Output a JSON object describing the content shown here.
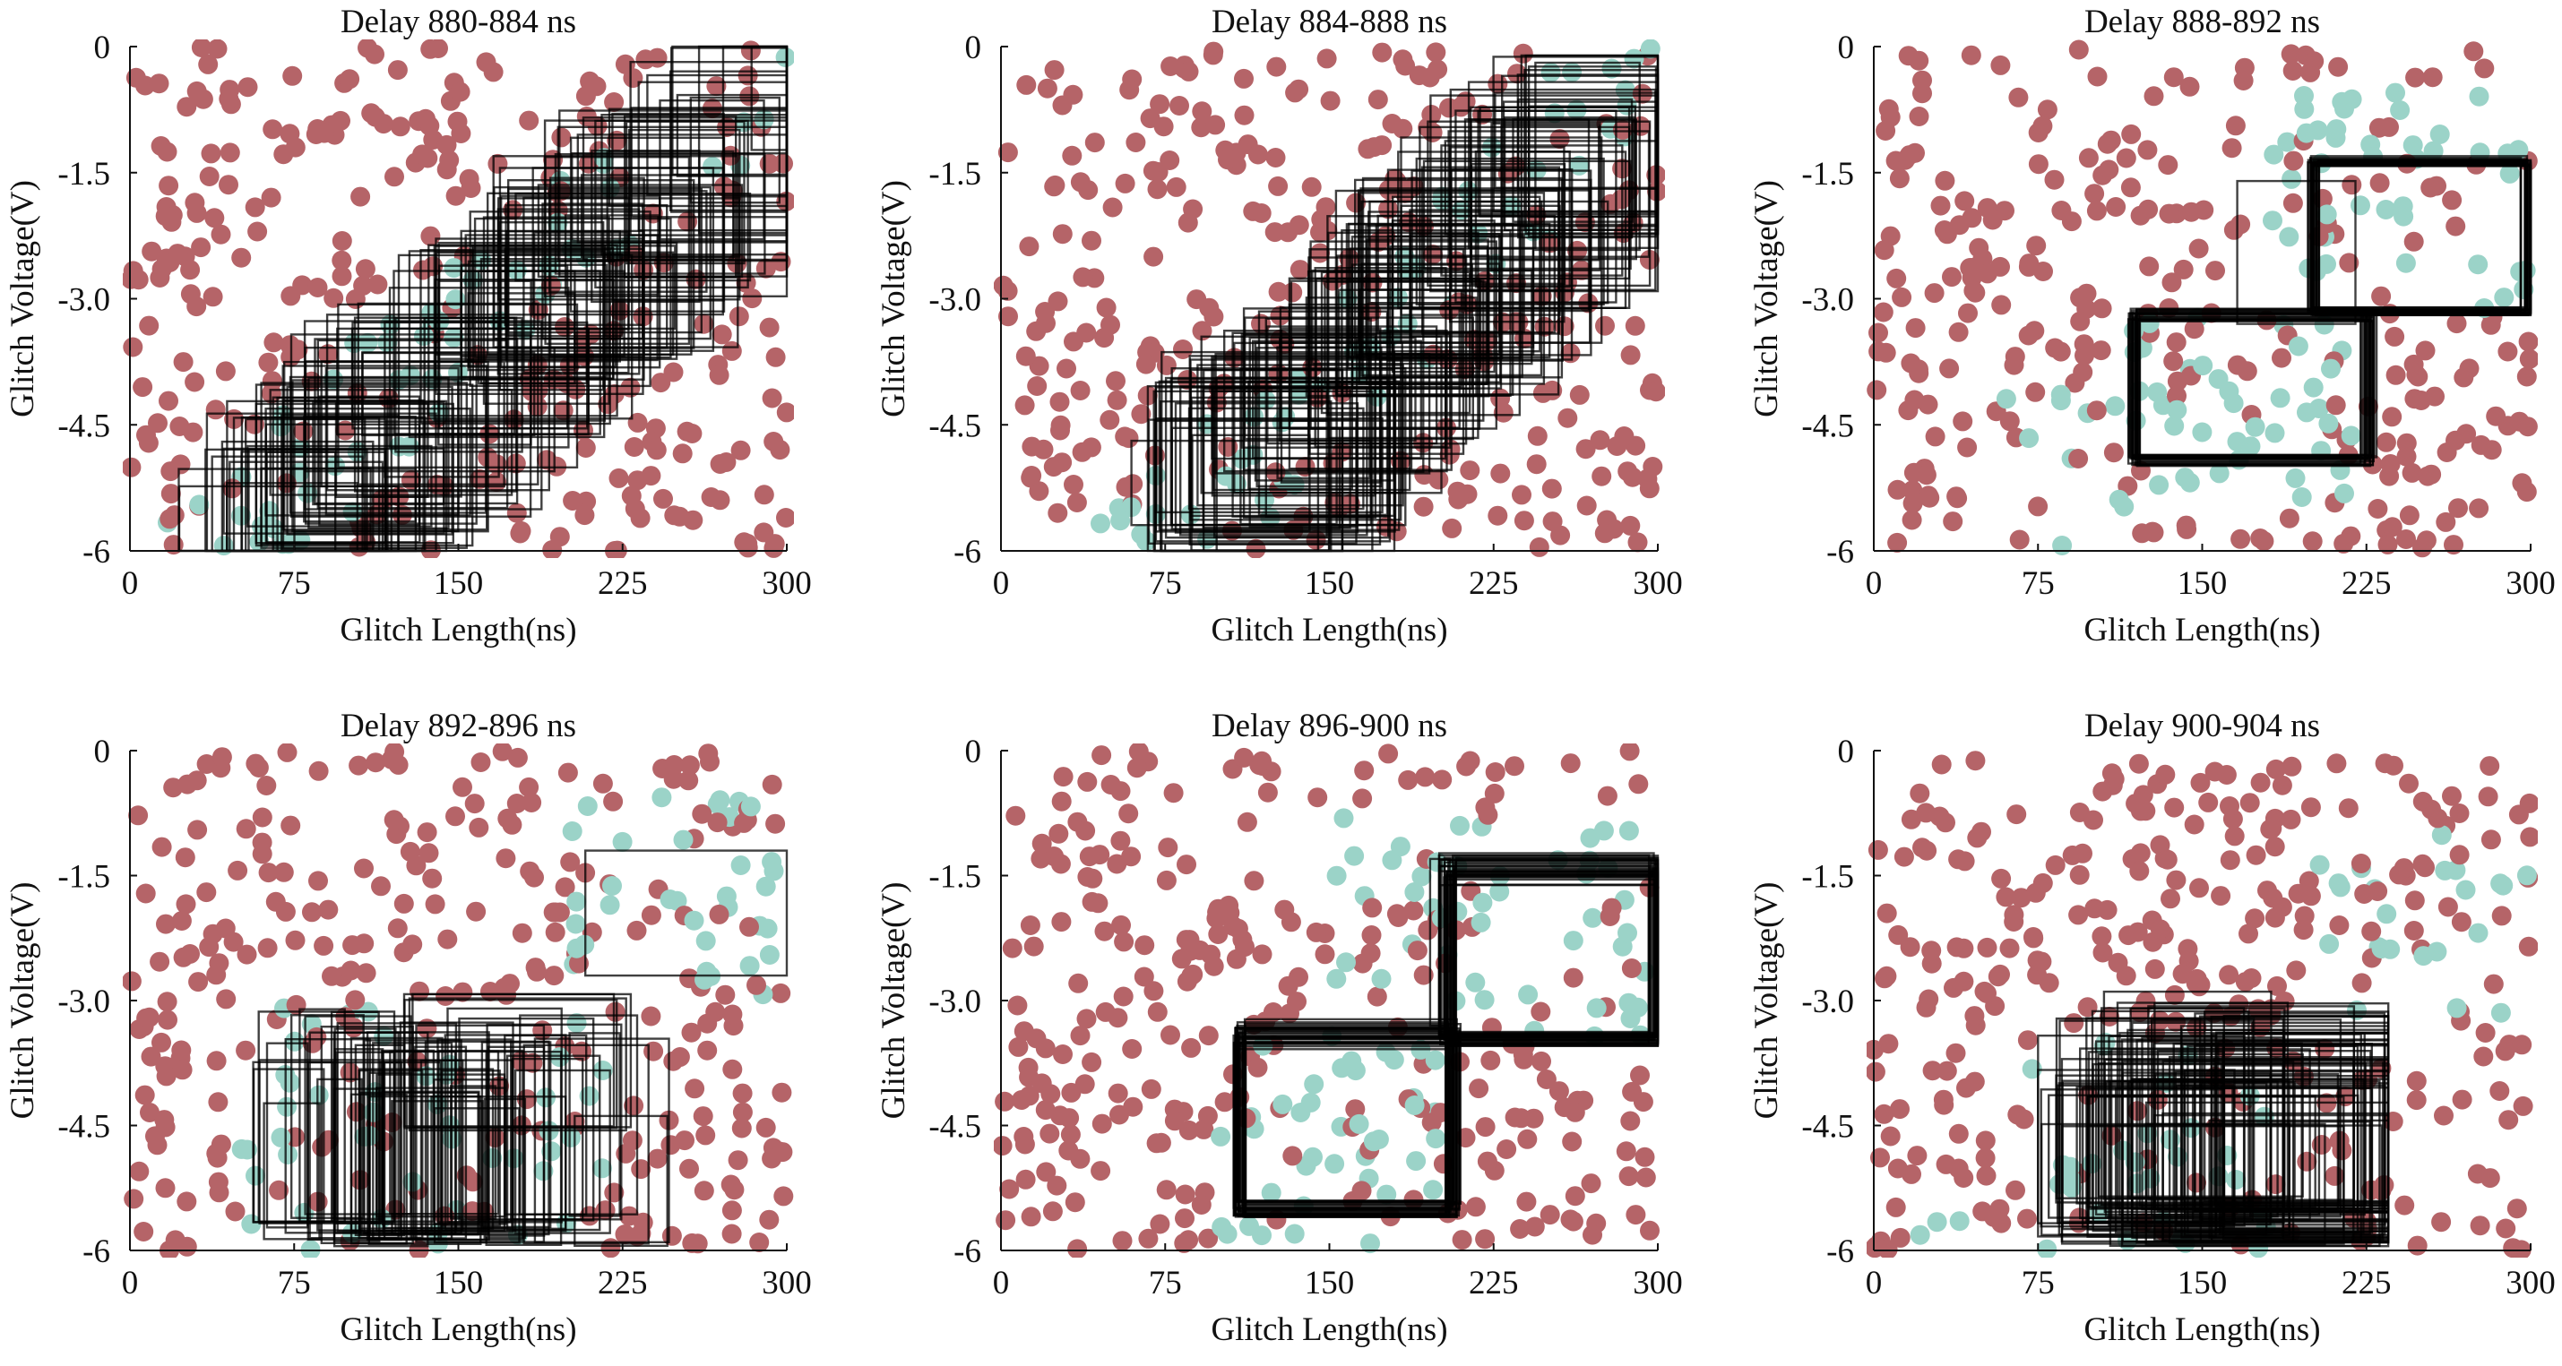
{
  "figure": {
    "colors": {
      "fail": "#b56468",
      "success": "#9bd3c8",
      "box": "#000000",
      "axis": "#111111"
    }
  },
  "chart_data": [
    {
      "type": "scatter",
      "title": "Delay 880-884 ns",
      "xlabel": "Glitch Length(ns)",
      "ylabel": "Glitch Voltage(V)",
      "xlim": [
        0,
        300
      ],
      "ylim": [
        -6,
        0
      ],
      "xticks": [
        "0",
        "75",
        "150",
        "225",
        "300"
      ],
      "yticks": [
        "0",
        "-1.5",
        "-3.0",
        "-4.5",
        "-6"
      ],
      "grid": false,
      "series": [
        {
          "values": "randomly scattered points over the full range"
        },
        {
          "values": "points concentrated along the diagonal band"
        }
      ],
      "boxes_region": {
        "x": [
          45,
          300
        ],
        "y": [
          -6,
          -0.2
        ]
      },
      "box_count_approx": 140
    },
    {
      "type": "scatter",
      "title": "Delay 884-888 ns",
      "xlabel": "Glitch Length(ns)",
      "ylabel": "Glitch Voltage(V)",
      "xlim": [
        0,
        300
      ],
      "ylim": [
        -6,
        0
      ],
      "xticks": [
        "0",
        "75",
        "150",
        "225",
        "300"
      ],
      "yticks": [
        "0",
        "-1.5",
        "-3.0",
        "-4.5",
        "-6"
      ],
      "grid": false,
      "boxes_region": {
        "x": [
          75,
          300
        ],
        "y": [
          -6,
          -0.7
        ]
      },
      "box_count_approx": 140
    },
    {
      "type": "scatter",
      "title": "Delay 888-892 ns",
      "xlabel": "Glitch Length(ns)",
      "ylabel": "Glitch Voltage(V)",
      "xlim": [
        0,
        300
      ],
      "ylim": [
        -6,
        0
      ],
      "xticks": [
        "0",
        "75",
        "150",
        "225",
        "300"
      ],
      "yticks": [
        "0",
        "-1.5",
        "-3.0",
        "-4.5",
        "-6"
      ],
      "grid": false,
      "boxes_region": {
        "x": [
          115,
          300
        ],
        "y": [
          -5,
          -1.4
        ]
      },
      "box_count_approx": 40
    },
    {
      "type": "scatter",
      "title": "Delay 892-896 ns",
      "xlabel": "Glitch Length(ns)",
      "ylabel": "Glitch Voltage(V)",
      "xlim": [
        0,
        300
      ],
      "ylim": [
        -6,
        0
      ],
      "xticks": [
        "0",
        "75",
        "150",
        "225",
        "300"
      ],
      "yticks": [
        "0",
        "-1.5",
        "-3.0",
        "-4.5",
        "-6"
      ],
      "grid": false,
      "boxes_region": {
        "x": [
          50,
          300
        ],
        "y": [
          -6,
          -1.2
        ]
      },
      "box_count_approx": 80
    },
    {
      "type": "scatter",
      "title": "Delay 896-900 ns",
      "xlabel": "Glitch Length(ns)",
      "ylabel": "Glitch Voltage(V)",
      "xlim": [
        0,
        300
      ],
      "ylim": [
        -6,
        0
      ],
      "xticks": [
        "0",
        "75",
        "150",
        "225",
        "300"
      ],
      "yticks": [
        "0",
        "-1.5",
        "-3.0",
        "-4.5",
        "-6"
      ],
      "grid": false,
      "boxes_region": {
        "x": [
          105,
          300
        ],
        "y": [
          -5.6,
          -1.3
        ]
      },
      "box_count_approx": 60
    },
    {
      "type": "scatter",
      "title": "Delay 900-904 ns",
      "xlabel": "Glitch Length(ns)",
      "ylabel": "Glitch Voltage(V)",
      "xlim": [
        0,
        300
      ],
      "ylim": [
        -6,
        0
      ],
      "xticks": [
        "0",
        "75",
        "150",
        "225",
        "300"
      ],
      "yticks": [
        "0",
        "-1.5",
        "-3.0",
        "-4.5",
        "-6"
      ],
      "grid": false,
      "boxes_region": {
        "x": [
          75,
          235
        ],
        "y": [
          -6,
          -3.4
        ]
      },
      "box_count_approx": 90
    }
  ]
}
